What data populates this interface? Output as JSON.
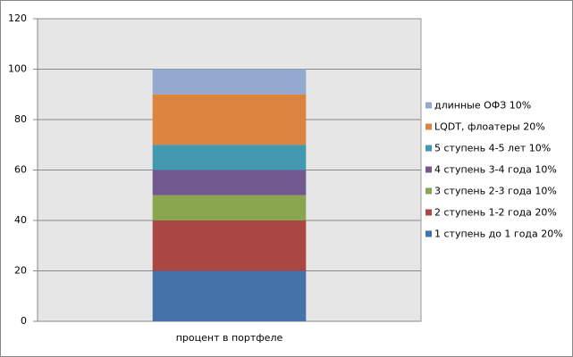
{
  "chart_data": {
    "type": "bar",
    "stacked": true,
    "categories": [
      "процент в портфеле"
    ],
    "series": [
      {
        "name": "1 ступень до 1 года 20%",
        "color": "#4572a7",
        "values": [
          20
        ]
      },
      {
        "name": "2 ступень 1-2 года 20%",
        "color": "#aa4643",
        "values": [
          20
        ]
      },
      {
        "name": "3 ступень 2-3 года 10%",
        "color": "#89a54e",
        "values": [
          10
        ]
      },
      {
        "name": "4 ступень 3-4 года 10%",
        "color": "#71588f",
        "values": [
          10
        ]
      },
      {
        "name": "5 ступень 4-5 лет 10%",
        "color": "#4198af",
        "values": [
          10
        ]
      },
      {
        "name": "LQDT, флоатеры  20%",
        "color": "#db843d",
        "values": [
          20
        ]
      },
      {
        "name": "длинные ОФЗ 10%",
        "color": "#93a9cf",
        "values": [
          10
        ]
      }
    ],
    "ylim": [
      0,
      120
    ],
    "yticks": [
      0,
      20,
      40,
      60,
      80,
      100,
      120
    ],
    "grid": true,
    "legend": "right"
  }
}
